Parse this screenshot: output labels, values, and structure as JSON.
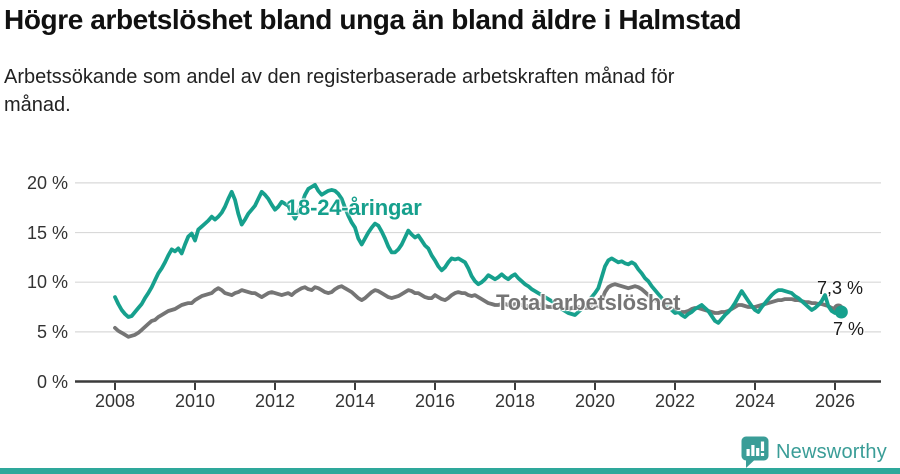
{
  "chart_data": {
    "type": "line",
    "title": "Högre arbetslöshet bland unga än bland äldre i Halmstad",
    "subtitle": "Arbetssökande som andel av den registerbaserade arbetskraften månad för månad.",
    "x_start": "2008-01",
    "x_end": "2026-02",
    "x_frequency": "monthly",
    "x_ticks": [
      {
        "year": 2008,
        "label": "2008"
      },
      {
        "year": 2010,
        "label": "2010"
      },
      {
        "year": 2012,
        "label": "2012"
      },
      {
        "year": 2014,
        "label": "2014"
      },
      {
        "year": 2016,
        "label": "2016"
      },
      {
        "year": 2018,
        "label": "2018"
      },
      {
        "year": 2020,
        "label": "2020"
      },
      {
        "year": 2022,
        "label": "2022"
      },
      {
        "year": 2024,
        "label": "2024"
      },
      {
        "year": 2026,
        "label": "2026"
      }
    ],
    "y_ticks": [
      {
        "value": 0,
        "label": "0 %"
      },
      {
        "value": 5,
        "label": "5 %"
      },
      {
        "value": 10,
        "label": "10 %"
      },
      {
        "value": 15,
        "label": "15 %"
      },
      {
        "value": 20,
        "label": "20 %"
      }
    ],
    "ylim": [
      0,
      21
    ],
    "grid": "horizontal",
    "legend_position": "inline-labels",
    "series": [
      {
        "name": "18-24-åringar",
        "color": "#16a08d",
        "end_label": "7 %",
        "end_value": 7.0,
        "values": [
          8.5,
          7.8,
          7.2,
          6.8,
          6.5,
          6.6,
          7.0,
          7.4,
          7.8,
          8.4,
          8.9,
          9.5,
          10.2,
          10.9,
          11.4,
          12.0,
          12.7,
          13.3,
          13.1,
          13.4,
          12.9,
          13.8,
          14.6,
          14.9,
          14.2,
          15.3,
          15.6,
          15.9,
          16.2,
          16.6,
          16.3,
          16.6,
          17.0,
          17.6,
          18.4,
          19.1,
          18.3,
          16.9,
          15.8,
          16.3,
          16.9,
          17.3,
          17.7,
          18.4,
          19.1,
          18.8,
          18.4,
          17.8,
          17.3,
          17.6,
          18.1,
          17.9,
          17.7,
          17.0,
          16.4,
          17.1,
          17.9,
          18.8,
          19.4,
          19.6,
          19.8,
          19.2,
          18.8,
          19.0,
          19.2,
          19.3,
          19.2,
          18.9,
          18.4,
          17.5,
          16.7,
          16.0,
          15.5,
          14.4,
          13.8,
          14.4,
          15.0,
          15.5,
          15.9,
          15.7,
          15.1,
          14.4,
          13.6,
          13.0,
          13.0,
          13.3,
          13.8,
          14.5,
          15.2,
          14.8,
          14.5,
          14.7,
          14.2,
          13.7,
          13.4,
          12.7,
          12.2,
          11.6,
          11.2,
          11.5,
          12.0,
          12.4,
          12.3,
          12.4,
          12.2,
          12.0,
          11.4,
          10.6,
          10.1,
          9.8,
          10.0,
          10.3,
          10.7,
          10.5,
          10.3,
          10.5,
          10.8,
          10.5,
          10.3,
          10.6,
          10.8,
          10.4,
          10.1,
          9.8,
          9.6,
          9.3,
          9.1,
          8.9,
          8.7,
          8.5,
          8.3,
          8.1,
          7.9,
          7.6,
          7.3,
          7.1,
          6.9,
          6.8,
          6.7,
          7.0,
          7.3,
          7.7,
          8.1,
          8.5,
          8.9,
          9.4,
          10.5,
          11.6,
          12.2,
          12.4,
          12.2,
          12.0,
          12.1,
          11.9,
          11.8,
          12.0,
          11.8,
          11.3,
          10.9,
          10.4,
          10.1,
          9.6,
          9.2,
          8.8,
          8.4,
          8.0,
          7.6,
          7.2,
          6.9,
          7.0,
          6.7,
          6.5,
          6.8,
          7.0,
          7.3,
          7.5,
          7.7,
          7.4,
          7.1,
          6.6,
          6.1,
          5.9,
          6.3,
          6.7,
          7.0,
          7.4,
          7.9,
          8.5,
          9.1,
          8.6,
          8.1,
          7.6,
          7.2,
          7.0,
          7.5,
          7.9,
          8.3,
          8.7,
          9.0,
          9.2,
          9.2,
          9.1,
          9.0,
          8.9,
          8.6,
          8.4,
          8.1,
          7.8,
          7.5,
          7.2,
          7.4,
          7.7,
          8.1,
          8.7,
          7.6,
          7.1,
          6.9,
          7.0
        ]
      },
      {
        "name": "Total arbetslöshet",
        "color": "#757575",
        "end_label": "7,3 %",
        "end_value": 7.3,
        "values": [
          5.4,
          5.1,
          4.9,
          4.7,
          4.5,
          4.6,
          4.7,
          4.9,
          5.2,
          5.5,
          5.8,
          6.1,
          6.2,
          6.5,
          6.7,
          6.9,
          7.1,
          7.2,
          7.3,
          7.5,
          7.7,
          7.8,
          7.9,
          7.9,
          8.2,
          8.4,
          8.6,
          8.7,
          8.8,
          8.9,
          9.2,
          9.4,
          9.2,
          8.9,
          8.8,
          8.7,
          8.9,
          9.0,
          9.2,
          9.1,
          9.0,
          8.9,
          8.9,
          8.7,
          8.5,
          8.7,
          8.9,
          9.0,
          8.9,
          8.8,
          8.7,
          8.8,
          8.9,
          8.7,
          9.0,
          9.2,
          9.4,
          9.5,
          9.3,
          9.2,
          9.5,
          9.4,
          9.2,
          9.0,
          8.9,
          9.0,
          9.3,
          9.5,
          9.6,
          9.4,
          9.2,
          9.0,
          8.7,
          8.4,
          8.2,
          8.4,
          8.7,
          9.0,
          9.2,
          9.1,
          8.9,
          8.7,
          8.5,
          8.4,
          8.5,
          8.6,
          8.8,
          9.0,
          9.2,
          9.1,
          8.9,
          8.9,
          8.7,
          8.5,
          8.4,
          8.4,
          8.7,
          8.5,
          8.3,
          8.2,
          8.4,
          8.7,
          8.9,
          9.0,
          8.9,
          8.9,
          8.7,
          8.6,
          8.7,
          8.5,
          8.3,
          8.1,
          7.9,
          7.8,
          7.7,
          7.7,
          7.8,
          7.8,
          7.7,
          7.7,
          7.8,
          7.7,
          7.7,
          7.6,
          7.6,
          7.7,
          7.8,
          7.8,
          7.7,
          7.6,
          7.5,
          7.5,
          7.5,
          7.4,
          7.4,
          7.3,
          7.3,
          7.4,
          7.5,
          7.5,
          7.4,
          7.4,
          7.4,
          7.5,
          7.5,
          7.6,
          8.2,
          9.0,
          9.5,
          9.7,
          9.8,
          9.7,
          9.6,
          9.5,
          9.4,
          9.5,
          9.6,
          9.5,
          9.3,
          9.0,
          8.7,
          8.4,
          8.2,
          8.0,
          7.8,
          7.6,
          7.4,
          7.3,
          7.2,
          7.1,
          7.0,
          7.0,
          7.1,
          7.3,
          7.4,
          7.4,
          7.3,
          7.2,
          7.1,
          7.0,
          6.9,
          6.9,
          7.0,
          7.0,
          7.1,
          7.3,
          7.5,
          7.7,
          7.7,
          7.6,
          7.5,
          7.5,
          7.5,
          7.6,
          7.7,
          7.8,
          7.9,
          8.0,
          8.1,
          8.2,
          8.2,
          8.3,
          8.3,
          8.3,
          8.2,
          8.2,
          8.1,
          8.0,
          8.0,
          7.9,
          7.9,
          7.8,
          7.8,
          7.7,
          7.6,
          7.4,
          7.3,
          7.3
        ]
      }
    ]
  },
  "colors": {
    "grid": "#d9d9d9",
    "axis": "#3b3b3b",
    "tick_label": "#333333",
    "title": "#111111",
    "subtitle": "#222222",
    "end_label": "#1a1a1a",
    "brand_teal": "#3a9d97",
    "footer_bar": "#2ea89b"
  },
  "footer": {
    "brand": "Newsworthy"
  }
}
